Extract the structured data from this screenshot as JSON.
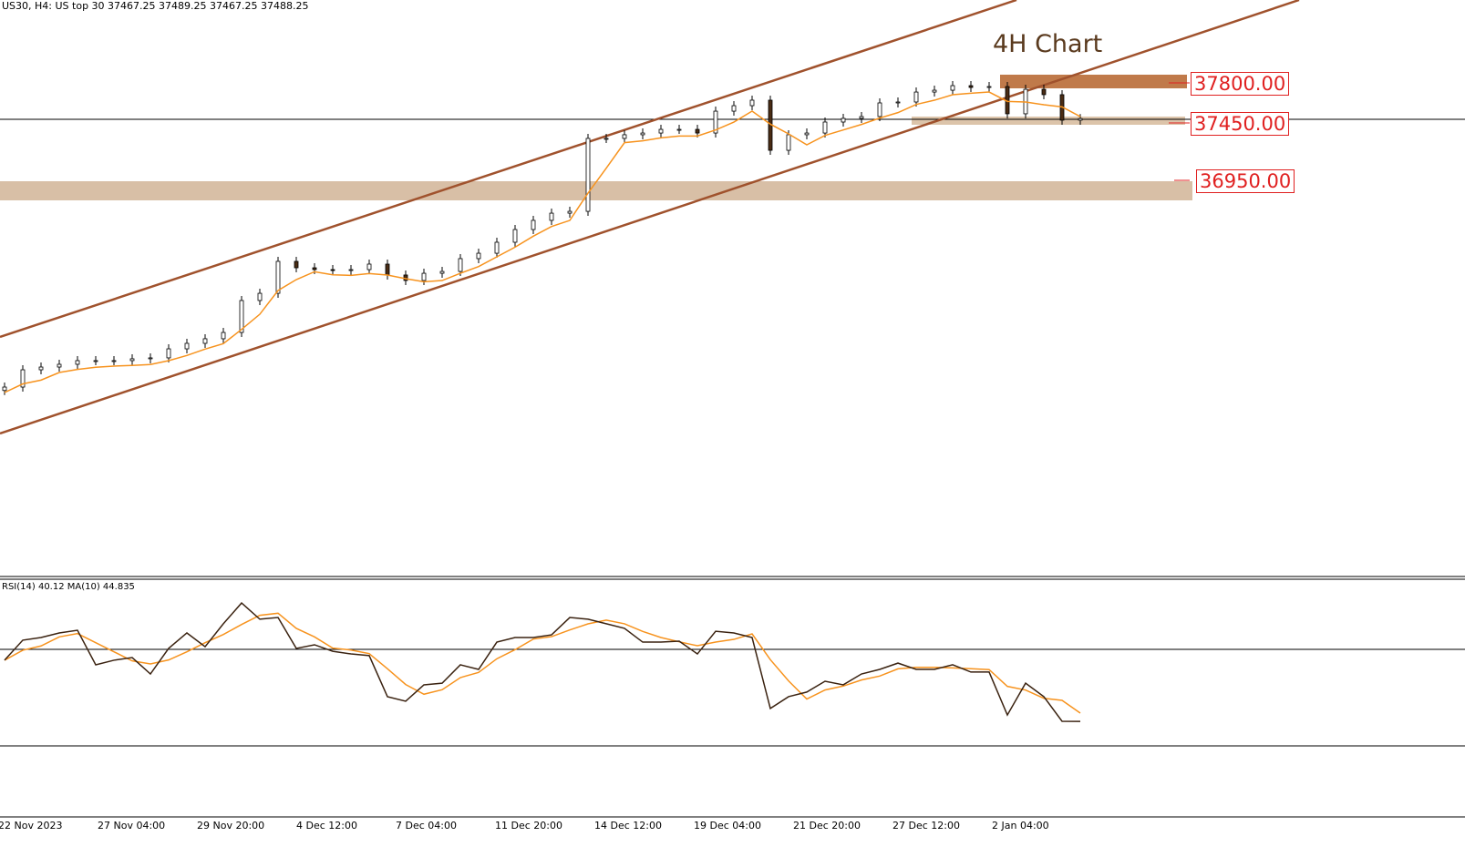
{
  "header": {
    "symbol_info": "US30, H4:  US top 30  37467.25 37489.25 37467.25 37488.25"
  },
  "annotation_title": "4H Chart",
  "levels": [
    {
      "label": "37800.00",
      "price": 37800,
      "zone_color": "#c07a4a"
    },
    {
      "label": "37450.00",
      "price": 37450,
      "zone_color": "#dcc4aa"
    },
    {
      "label": "36950.00",
      "price": 36950,
      "zone_color": "#d8bfa6"
    }
  ],
  "rsi_header": "RSI(14) 40.12 MA(10) 44.835",
  "colors": {
    "candle_bear": "#4a2c14",
    "candle_bull": "#ffffff",
    "ma": "#f7931e",
    "channel": "#a0522d",
    "rsi": "#3a2210",
    "level_text": "#e02020"
  },
  "chart_data": [
    {
      "type": "candlestick",
      "title": "4H Chart",
      "symbol": "US30, H4",
      "x_tick_labels": [
        "22 Nov 2023",
        "27 Nov 04:00",
        "29 Nov 20:00",
        "4 Dec 12:00",
        "7 Dec 04:00",
        "11 Dec 20:00",
        "14 Dec 12:00",
        "19 Dec 04:00",
        "21 Dec 20:00",
        "27 Dec 12:00",
        "2 Jan 04:00"
      ],
      "last_ohlc": {
        "open": 37467.25,
        "high": 37489.25,
        "low": 37467.25,
        "close": 37488.25
      },
      "closes": [
        35143,
        35294,
        35318,
        35342,
        35374,
        35374,
        35374,
        35390,
        35398,
        35477,
        35525,
        35565,
        35620,
        35899,
        35962,
        36241,
        36185,
        36169,
        36161,
        36169,
        36217,
        36122,
        36074,
        36137,
        36153,
        36265,
        36312,
        36408,
        36519,
        36599,
        36662,
        36678,
        37315,
        37315,
        37347,
        37362,
        37394,
        37394,
        37362,
        37553,
        37601,
        37649,
        37211,
        37347,
        37362,
        37458,
        37490,
        37506,
        37625,
        37633,
        37720,
        37736,
        37776,
        37760,
        37768,
        37530,
        37744,
        37697,
        37474,
        37488.25
      ],
      "horizontal_levels": [
        37800,
        37450,
        36950
      ],
      "ylim": [
        34600,
        38500
      ],
      "grid": false
    },
    {
      "type": "line",
      "title": "RSI(14) 40.12 MA(10) 44.835",
      "series": [
        {
          "name": "RSI(14)",
          "values": [
            65.5,
            73.8,
            74.9,
            76.8,
            77.9,
            63.6,
            65.5,
            66.6,
            59.8,
            70.4,
            76.8,
            71.1,
            80.6,
            89.2,
            82.5,
            83.2,
            70.4,
            71.9,
            69.2,
            68.1,
            67.4,
            50.4,
            48.5,
            55.3,
            56,
            63.6,
            61.7,
            73,
            74.9,
            74.9,
            76,
            83.2,
            82.5,
            80.6,
            78.7,
            73,
            73,
            73.4,
            68.1,
            77.5,
            76.8,
            74.9,
            45.5,
            50.4,
            52.3,
            56.8,
            55.3,
            59.8,
            61.7,
            64.3,
            61.7,
            61.7,
            63.6,
            60.6,
            60.6,
            42.8,
            56,
            50.4,
            40.2,
            40.12
          ]
        }
      ],
      "levels": [
        70,
        30
      ],
      "ylim": [
        0,
        100
      ]
    }
  ]
}
